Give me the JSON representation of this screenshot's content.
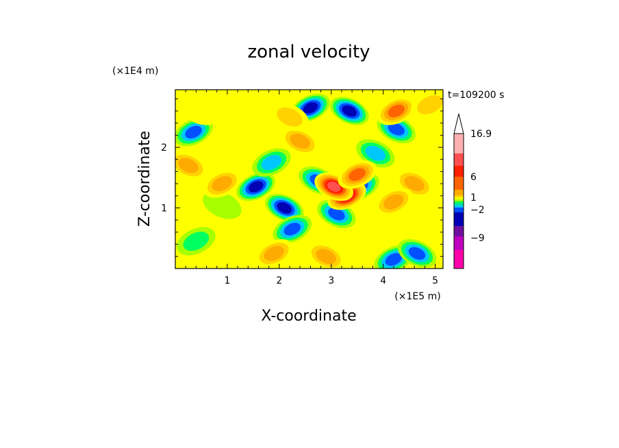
{
  "chart_data": {
    "type": "heatmap",
    "title": "zonal velocity",
    "xlabel": "X-coordinate",
    "ylabel": "Z-coordinate",
    "x_unit": "(×1E5 m)",
    "y_unit": "(×1E4 m)",
    "time_label": "t=109200 s",
    "xlim": [
      0,
      5.15
    ],
    "ylim": [
      0,
      2.95
    ],
    "x_ticks": [
      "1",
      "2",
      "3",
      "4",
      "5"
    ],
    "y_ticks": [
      "1",
      "2"
    ],
    "colorbar": {
      "labels": [
        "16.9",
        "6",
        "1",
        "−2",
        "−9"
      ],
      "colors": [
        "#ff00aa",
        "#c000c0",
        "#7010a0",
        "#0000b4",
        "#0050ff",
        "#00c8ff",
        "#00e0a0",
        "#00ff60",
        "#a8ff00",
        "#ffff00",
        "#ffd200",
        "#ffaa00",
        "#ff6400",
        "#ff2000",
        "#ff5050",
        "#ffb0b0"
      ],
      "max_triangle": true
    },
    "features": [
      {
        "x": 2.6,
        "z": 2.65,
        "v": -9
      },
      {
        "x": 3.35,
        "z": 2.6,
        "v": -9
      },
      {
        "x": 0.35,
        "z": 2.25,
        "v": -5
      },
      {
        "x": 4.25,
        "z": 2.3,
        "v": -7
      },
      {
        "x": 1.55,
        "z": 1.35,
        "v": -8
      },
      {
        "x": 2.1,
        "z": 1.0,
        "v": -8
      },
      {
        "x": 2.25,
        "z": 0.65,
        "v": -7
      },
      {
        "x": 3.1,
        "z": 0.9,
        "v": -6
      },
      {
        "x": 3.55,
        "z": 1.35,
        "v": -6
      },
      {
        "x": 2.75,
        "z": 1.45,
        "v": -6
      },
      {
        "x": 4.2,
        "z": 0.15,
        "v": -6
      },
      {
        "x": 4.65,
        "z": 0.25,
        "v": -5
      },
      {
        "x": 1.85,
        "z": 1.75,
        "v": -4
      },
      {
        "x": 3.85,
        "z": 1.9,
        "v": -4
      },
      {
        "x": 0.4,
        "z": 0.45,
        "v": -2
      },
      {
        "x": 0.9,
        "z": 1.05,
        "v": -1
      },
      {
        "x": 3.3,
        "z": 1.2,
        "v": 10
      },
      {
        "x": 3.05,
        "z": 1.35,
        "v": 9
      },
      {
        "x": 4.25,
        "z": 2.6,
        "v": 6
      },
      {
        "x": 2.4,
        "z": 2.1,
        "v": 4
      },
      {
        "x": 3.5,
        "z": 1.55,
        "v": 6
      },
      {
        "x": 0.25,
        "z": 1.7,
        "v": 4
      },
      {
        "x": 0.9,
        "z": 1.4,
        "v": 3
      },
      {
        "x": 4.6,
        "z": 1.4,
        "v": 4
      },
      {
        "x": 4.2,
        "z": 1.1,
        "v": 3
      },
      {
        "x": 2.9,
        "z": 0.2,
        "v": 3
      },
      {
        "x": 1.9,
        "z": 0.25,
        "v": 3
      },
      {
        "x": 2.2,
        "z": 2.5,
        "v": 2
      },
      {
        "x": 4.9,
        "z": 2.7,
        "v": 2
      },
      {
        "x": 0.45,
        "z": 2.6,
        "v": 1
      },
      {
        "x": 1.4,
        "z": 2.3,
        "v": 1
      },
      {
        "x": 4.8,
        "z": 0.9,
        "v": 1
      }
    ]
  }
}
